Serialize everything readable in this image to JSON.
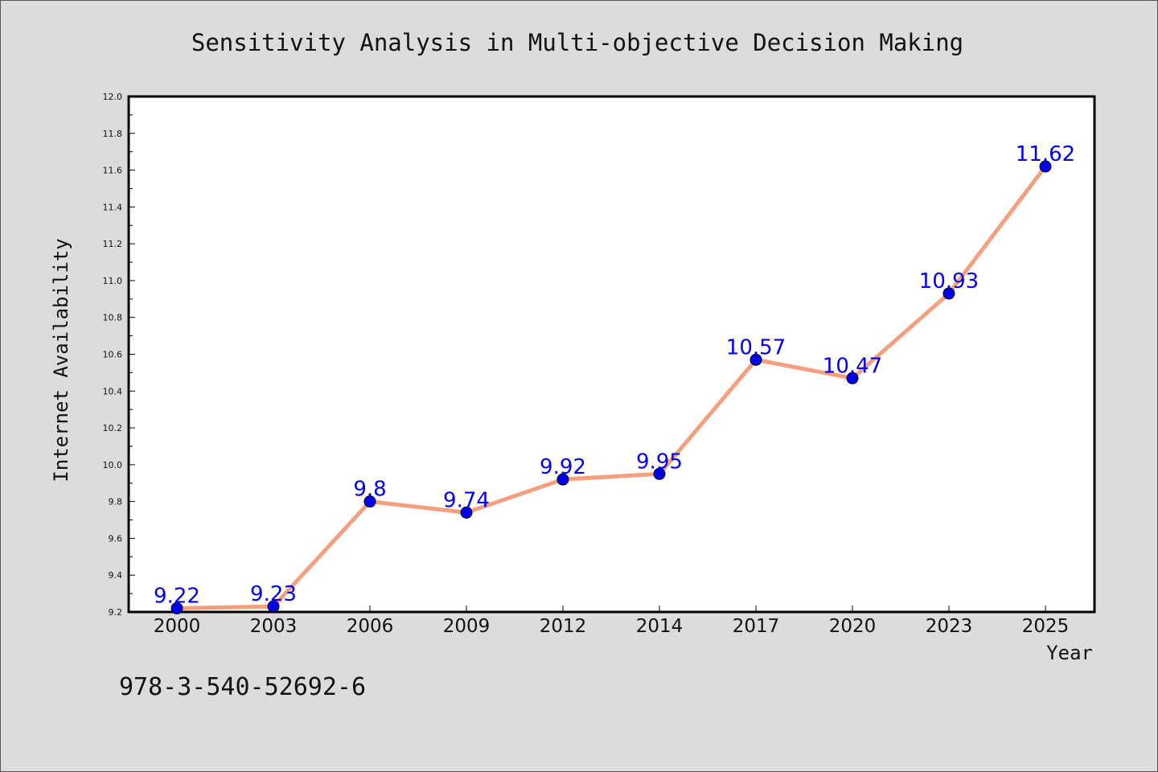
{
  "chart_data": {
    "type": "line",
    "title": "Sensitivity Analysis in Multi-objective Decision Making",
    "xlabel": "Year",
    "ylabel": "Internet Availability",
    "categories": [
      "2000",
      "2003",
      "2006",
      "2009",
      "2012",
      "2014",
      "2017",
      "2020",
      "2023",
      "2025"
    ],
    "series": [
      {
        "values": [
          9.22,
          9.23,
          9.8,
          9.74,
          9.92,
          9.95,
          10.57,
          10.47,
          10.93,
          11.62
        ]
      }
    ],
    "data_labels": [
      "9.22",
      "9.23",
      "9.8",
      "9.74",
      "9.92",
      "9.95",
      "10.57",
      "10.47",
      "10.93",
      "11.62"
    ],
    "ylim": [
      9.2,
      12.0
    ],
    "yticks": [
      "9.2",
      "9.4",
      "9.6",
      "9.8",
      "10.0",
      "10.2",
      "10.4",
      "10.6",
      "10.8",
      "11.0",
      "11.2",
      "11.4",
      "11.6",
      "11.8",
      "12.0"
    ],
    "grid": false,
    "colors": {
      "line": "#f4a07f",
      "marker": "#0000ee",
      "label": "#0000ee",
      "background": "#dcdcdc",
      "plot_bg": "#ffffff"
    }
  },
  "footer": {
    "isbn": "978-3-540-52692-6"
  }
}
